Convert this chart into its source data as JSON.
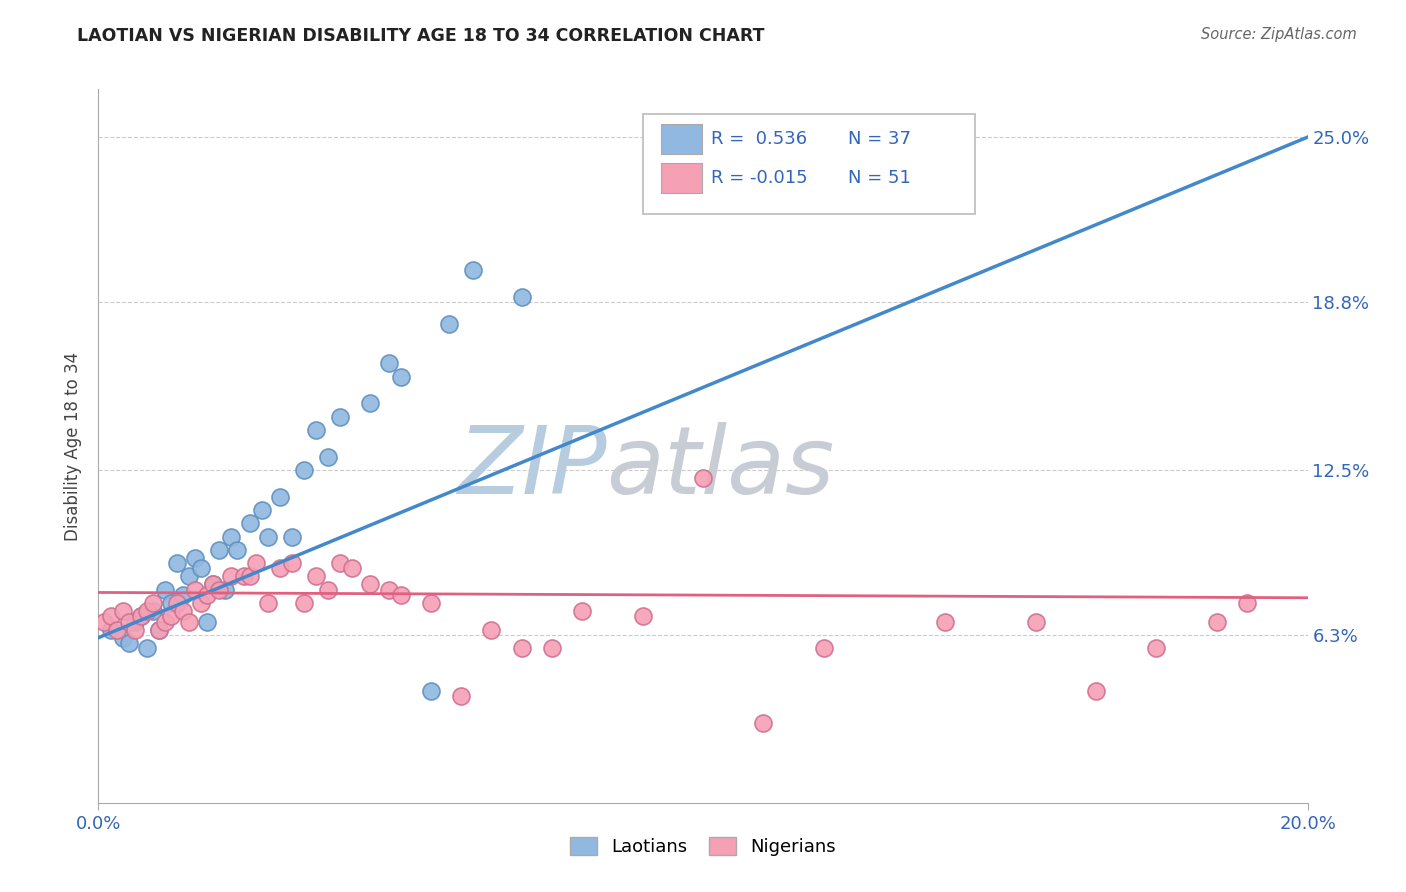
{
  "title": "LAOTIAN VS NIGERIAN DISABILITY AGE 18 TO 34 CORRELATION CHART",
  "source": "Source: ZipAtlas.com",
  "ylabel": "Disability Age 18 to 34",
  "ylabel_ticks": [
    "6.3%",
    "12.5%",
    "18.8%",
    "25.0%"
  ],
  "ylabel_tick_vals": [
    0.063,
    0.125,
    0.188,
    0.25
  ],
  "xlabel_ticks": [
    "0.0%",
    "20.0%"
  ],
  "xlabel_tick_vals": [
    0.0,
    0.2
  ],
  "xlim": [
    0.0,
    0.2
  ],
  "ylim": [
    0.0,
    0.268
  ],
  "laotian_R": 0.536,
  "laotian_N": 37,
  "nigerian_R": -0.015,
  "nigerian_N": 51,
  "laotian_color": "#90b8e0",
  "nigerian_color": "#f5a0b5",
  "laotian_line_color": "#4488cc",
  "nigerian_line_color": "#e06080",
  "watermark_zip_color": "#c5d5e8",
  "watermark_atlas_color": "#c8ccd0",
  "grid_color": "#cccccc",
  "laotian_x": [
    0.002,
    0.004,
    0.005,
    0.006,
    0.007,
    0.008,
    0.009,
    0.01,
    0.011,
    0.012,
    0.013,
    0.014,
    0.015,
    0.016,
    0.017,
    0.018,
    0.019,
    0.02,
    0.021,
    0.022,
    0.023,
    0.025,
    0.027,
    0.028,
    0.03,
    0.032,
    0.034,
    0.036,
    0.038,
    0.04,
    0.045,
    0.048,
    0.05,
    0.055,
    0.058,
    0.062,
    0.07
  ],
  "laotian_y": [
    0.065,
    0.062,
    0.06,
    0.068,
    0.07,
    0.058,
    0.072,
    0.065,
    0.08,
    0.075,
    0.09,
    0.078,
    0.085,
    0.092,
    0.088,
    0.068,
    0.082,
    0.095,
    0.08,
    0.1,
    0.095,
    0.105,
    0.11,
    0.1,
    0.115,
    0.1,
    0.125,
    0.14,
    0.13,
    0.145,
    0.15,
    0.165,
    0.16,
    0.042,
    0.18,
    0.2,
    0.19
  ],
  "nigerian_x": [
    0.001,
    0.002,
    0.003,
    0.004,
    0.005,
    0.006,
    0.007,
    0.008,
    0.009,
    0.01,
    0.011,
    0.012,
    0.013,
    0.014,
    0.015,
    0.016,
    0.017,
    0.018,
    0.019,
    0.02,
    0.022,
    0.024,
    0.025,
    0.026,
    0.028,
    0.03,
    0.032,
    0.034,
    0.036,
    0.038,
    0.04,
    0.042,
    0.045,
    0.048,
    0.05,
    0.055,
    0.06,
    0.065,
    0.07,
    0.075,
    0.08,
    0.09,
    0.1,
    0.11,
    0.12,
    0.14,
    0.155,
    0.165,
    0.175,
    0.185,
    0.19
  ],
  "nigerian_y": [
    0.068,
    0.07,
    0.065,
    0.072,
    0.068,
    0.065,
    0.07,
    0.072,
    0.075,
    0.065,
    0.068,
    0.07,
    0.075,
    0.072,
    0.068,
    0.08,
    0.075,
    0.078,
    0.082,
    0.08,
    0.085,
    0.085,
    0.085,
    0.09,
    0.075,
    0.088,
    0.09,
    0.075,
    0.085,
    0.08,
    0.09,
    0.088,
    0.082,
    0.08,
    0.078,
    0.075,
    0.04,
    0.065,
    0.058,
    0.058,
    0.072,
    0.07,
    0.122,
    0.03,
    0.058,
    0.068,
    0.068,
    0.042,
    0.058,
    0.068,
    0.075
  ],
  "lao_line_x0": 0.0,
  "lao_line_y0": 0.062,
  "lao_line_x1": 0.2,
  "lao_line_y1": 0.25,
  "nig_line_x0": 0.0,
  "nig_line_y0": 0.079,
  "nig_line_x1": 0.2,
  "nig_line_y1": 0.077
}
